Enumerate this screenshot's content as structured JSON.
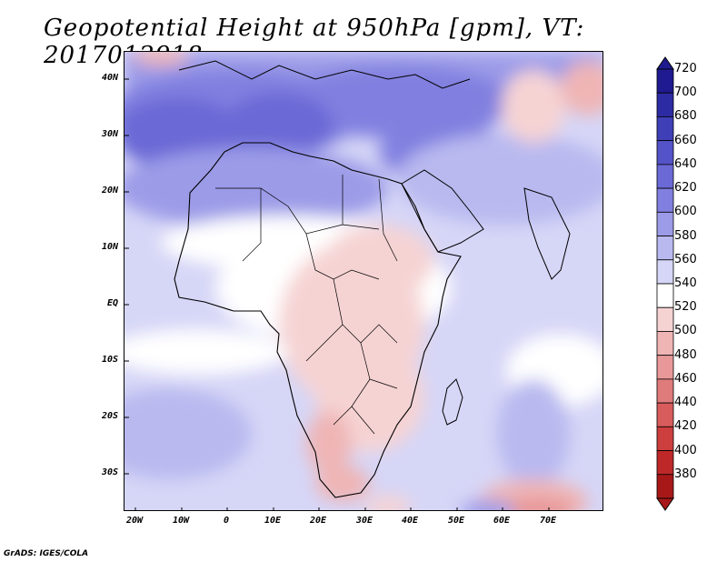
{
  "title": "Geopotential Height at 950hPa [gpm], VT: 2017012918",
  "footer": "GrADS: IGES/COLA",
  "map": {
    "lon_range": [
      -25,
      80
    ],
    "lat_range": [
      -37,
      45
    ],
    "lat_labels": [
      "40N",
      "30N",
      "20N",
      "10N",
      "EQ",
      "10S",
      "20S",
      "30S"
    ],
    "lon_labels": [
      "20W",
      "10W",
      "0",
      "10E",
      "20E",
      "30E",
      "40E",
      "50E",
      "60E",
      "70E"
    ]
  },
  "colorbar": {
    "levels": [
      "720",
      "700",
      "680",
      "660",
      "640",
      "620",
      "600",
      "580",
      "560",
      "540",
      "520",
      "500",
      "480",
      "460",
      "440",
      "420",
      "400",
      "380"
    ],
    "colors": [
      "#1f1a8f",
      "#2d2ba3",
      "#3f3fb8",
      "#5553c8",
      "#6a69d6",
      "#8180e0",
      "#9c9be8",
      "#b9b9f0",
      "#d6d6f7",
      "#ffffff",
      "#f6d3d3",
      "#efb5b5",
      "#e89898",
      "#e07b7b",
      "#d85c5c",
      "#cd3e3e",
      "#bf2828",
      "#a81818"
    ]
  }
}
